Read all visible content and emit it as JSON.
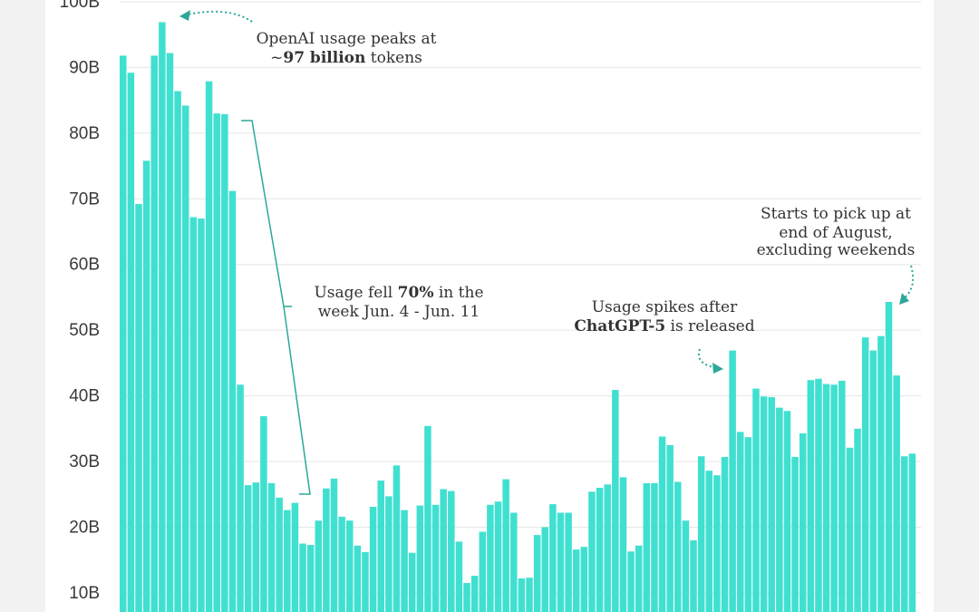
{
  "colors": {
    "bar": "#40e0d0",
    "annotation": "#2ba89a",
    "text": "#333333",
    "background": "#ffffff"
  },
  "chart_data": {
    "type": "bar",
    "title": "",
    "xlabel": "",
    "ylabel": "",
    "ylim": [
      8,
      100
    ],
    "yticks": [
      "10B",
      "20B",
      "30B",
      "40B",
      "50B",
      "60B",
      "70B",
      "80B",
      "90B",
      "100B"
    ],
    "grid": true,
    "series": [
      {
        "values": [
          91.8,
          89.2,
          69.2,
          75.8,
          91.8,
          96.9,
          92.2,
          86.4,
          84.2,
          67.2,
          67.0,
          87.9,
          83.0,
          82.9,
          71.2,
          41.7,
          26.4,
          26.8,
          36.9,
          26.7,
          24.5,
          22.6,
          23.7,
          17.5,
          17.3,
          21.0,
          25.9,
          27.4,
          21.6,
          21.0,
          17.2,
          16.2,
          23.1,
          27.1,
          24.7,
          29.4,
          22.6,
          16.1,
          23.3,
          35.4,
          23.4,
          25.8,
          25.5,
          17.8,
          11.5,
          12.6,
          19.3,
          23.4,
          23.9,
          27.3,
          22.2,
          12.2,
          12.3,
          18.8,
          20.0,
          23.5,
          22.2,
          22.2,
          16.6,
          17.0,
          25.4,
          26.0,
          26.5,
          40.9,
          27.6,
          16.3,
          17.2,
          26.7,
          26.7,
          33.8,
          32.5,
          26.9,
          21.0,
          18.0,
          30.8,
          28.6,
          27.9,
          30.7,
          46.9,
          34.5,
          33.7,
          41.1,
          39.9,
          39.8,
          38.2,
          37.7,
          30.7,
          34.3,
          42.4,
          42.6,
          41.8,
          41.7,
          42.3,
          32.1,
          35.0,
          48.9,
          46.9,
          49.1,
          54.3,
          43.1,
          30.8,
          31.2
        ]
      }
    ],
    "annotations": [
      {
        "id": "peak",
        "text": "OpenAI usage peaks at\n~97 billion tokens",
        "bold": "97 billion"
      },
      {
        "id": "fall",
        "text": "Usage fell 70% in the\nweek Jun. 4 - Jun. 11",
        "bold": "70%"
      },
      {
        "id": "gpt5",
        "text": "Usage spikes after\nChatGPT-5 is released",
        "bold": "ChatGPT-5"
      },
      {
        "id": "august",
        "text": "Starts to pick up at\nend of August,\nexcluding weekends",
        "bold": ""
      }
    ]
  }
}
